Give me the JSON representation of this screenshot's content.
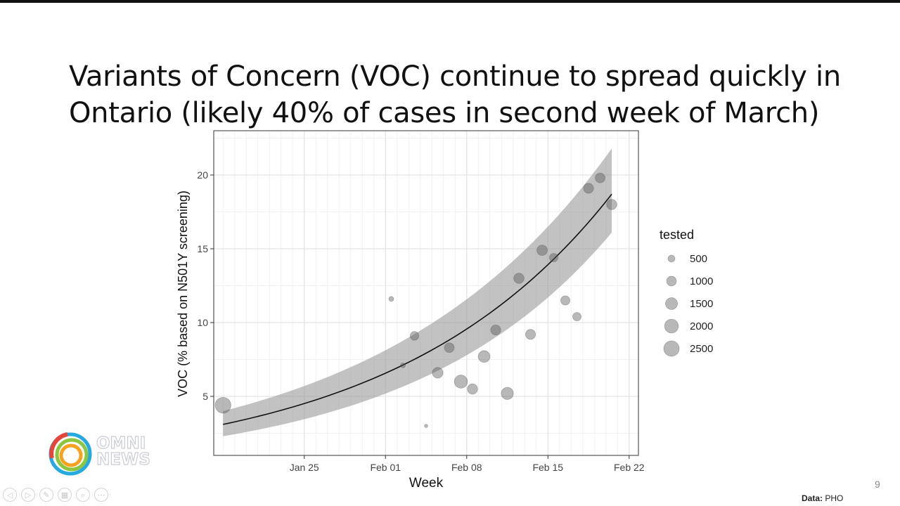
{
  "slide": {
    "title_line1": "Variants of Concern (VOC) continue to spread quickly in",
    "title_line2": "Ontario (likely 40% of cases in second week of March)",
    "page_number": "9",
    "source_label": "Data:",
    "source_value": "PHO"
  },
  "logo": {
    "line1": "OMNI",
    "line2": "NEWS",
    "colors": [
      "#e4463c",
      "#f6a21e",
      "#8cc63e",
      "#25a9e0"
    ]
  },
  "controls": [
    {
      "name": "previous-slide-button",
      "icon": "◁"
    },
    {
      "name": "next-slide-button",
      "icon": "▷"
    },
    {
      "name": "pen-tool-button",
      "icon": "✎"
    },
    {
      "name": "slides-grid-button",
      "icon": "▦"
    },
    {
      "name": "zoom-button",
      "icon": "⌕"
    },
    {
      "name": "more-options-button",
      "icon": "⋯"
    }
  ],
  "chart_data": {
    "type": "scatter",
    "xlabel": "Week",
    "ylabel": "VOC (% based on N501Y screening)",
    "x_unit": "days since 2021-01-18",
    "xlim": [
      -0.8,
      35.8
    ],
    "ylim": [
      1.0,
      23.0
    ],
    "x_ticks": [
      {
        "value": 7,
        "label": "Jan 25"
      },
      {
        "value": 14,
        "label": "Feb 01"
      },
      {
        "value": 21,
        "label": "Feb 08"
      },
      {
        "value": 28,
        "label": "Feb 15"
      },
      {
        "value": 35,
        "label": "Feb 22"
      }
    ],
    "y_ticks": [
      5,
      10,
      15,
      20
    ],
    "legend": {
      "title": "tested",
      "position": "right",
      "values": [
        500,
        1000,
        1500,
        2000,
        2500
      ]
    },
    "points": [
      {
        "x": 0,
        "y": 4.4,
        "tested": 2600
      },
      {
        "x": 14.5,
        "y": 11.6,
        "tested": 250
      },
      {
        "x": 15.5,
        "y": 7.1,
        "tested": 250
      },
      {
        "x": 16.5,
        "y": 9.1,
        "tested": 800
      },
      {
        "x": 17.5,
        "y": 3.0,
        "tested": 120
      },
      {
        "x": 18.5,
        "y": 6.6,
        "tested": 1200
      },
      {
        "x": 19.5,
        "y": 8.3,
        "tested": 1000
      },
      {
        "x": 20.5,
        "y": 6.0,
        "tested": 1800
      },
      {
        "x": 21.5,
        "y": 5.5,
        "tested": 1100
      },
      {
        "x": 22.5,
        "y": 7.7,
        "tested": 1450
      },
      {
        "x": 23.5,
        "y": 9.5,
        "tested": 1050
      },
      {
        "x": 24.5,
        "y": 5.2,
        "tested": 1550
      },
      {
        "x": 25.5,
        "y": 13.0,
        "tested": 1100
      },
      {
        "x": 26.5,
        "y": 9.2,
        "tested": 1050
      },
      {
        "x": 27.5,
        "y": 14.9,
        "tested": 1150
      },
      {
        "x": 28.5,
        "y": 14.4,
        "tested": 750
      },
      {
        "x": 29.5,
        "y": 11.5,
        "tested": 900
      },
      {
        "x": 30.5,
        "y": 10.4,
        "tested": 750
      },
      {
        "x": 31.5,
        "y": 19.1,
        "tested": 1050
      },
      {
        "x": 32.5,
        "y": 19.8,
        "tested": 1000
      },
      {
        "x": 33.5,
        "y": 18.0,
        "tested": 1100
      }
    ],
    "fit": {
      "model": "exponential",
      "y0": 3.1,
      "y_end": 18.7,
      "x_start": 0,
      "x_end": 33.5,
      "ci_lower_start": 2.3,
      "ci_lower_end": 16.1,
      "ci_upper_start": 4.0,
      "ci_upper_end": 21.8
    },
    "colors": {
      "point_fill": "#555555",
      "ribbon": "#9a9a9a",
      "fit_line": "#111111",
      "grid_major": "#e4e4e4",
      "grid_minor": "#f1f1f1"
    }
  }
}
